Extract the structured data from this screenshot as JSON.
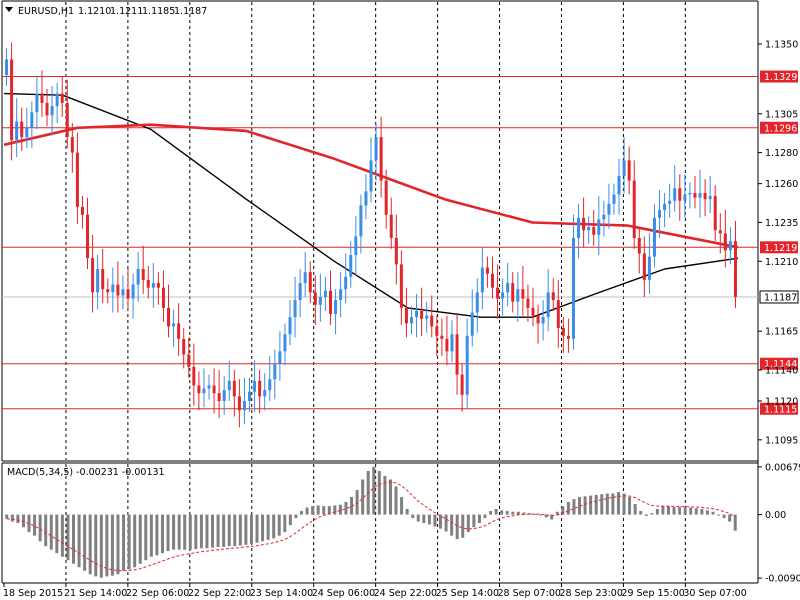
{
  "chart_data": [
    {
      "type": "candlestick",
      "title": "EURUSD,H1",
      "ohlc_readout": {
        "open": "1.1210",
        "high": "1.1211",
        "low": "1.1185",
        "close": "1.1187"
      },
      "current_price_label": "1.1187",
      "y_tick_labels": [
        "1.1350",
        "1.1305",
        "1.1280",
        "1.1260",
        "1.1235",
        "1.1210",
        "1.1165",
        "1.1140",
        "1.1120",
        "1.1095"
      ],
      "ylim": [
        1.1082,
        1.1377
      ],
      "x_tick_labels": [
        "18 Sep 2015",
        "21 Sep 14:00",
        "22 Sep 06:00",
        "22 Sep 22:00",
        "23 Sep 14:00",
        "24 Sep 06:00",
        "24 Sep 22:00",
        "25 Sep 14:00",
        "28 Sep 07:00",
        "28 Sep 23:00",
        "29 Sep 15:00",
        "30 Sep 07:00"
      ],
      "grid": "vertical dashed",
      "horizontal_levels": [
        {
          "label": "1.1329",
          "value": 1.1329
        },
        {
          "label": "1.1296",
          "value": 1.1296
        },
        {
          "label": "1.1219",
          "value": 1.1219
        },
        {
          "label": "1.1144",
          "value": 1.1144
        },
        {
          "label": "1.1115",
          "value": 1.1115
        }
      ],
      "candle_colors": {
        "up": "#3a8ee6",
        "down": "#e0262a"
      },
      "closes": [
        1.134,
        1.1288,
        1.13,
        1.129,
        1.1296,
        1.1306,
        1.1318,
        1.1312,
        1.1304,
        1.131,
        1.1318,
        1.1312,
        1.129,
        1.128,
        1.1245,
        1.124,
        1.1212,
        1.119,
        1.1205,
        1.1192,
        1.119,
        1.1195,
        1.1188,
        1.1192,
        1.1186,
        1.1195,
        1.1205,
        1.1198,
        1.1193,
        1.1196,
        1.1193,
        1.118,
        1.1168,
        1.117,
        1.116,
        1.115,
        1.1142,
        1.113,
        1.1125,
        1.1128,
        1.113,
        1.1125,
        1.112,
        1.1127,
        1.1133,
        1.1123,
        1.1114,
        1.112,
        1.1126,
        1.1133,
        1.1123,
        1.1127,
        1.1134,
        1.1144,
        1.1152,
        1.1163,
        1.1174,
        1.1185,
        1.1196,
        1.1203,
        1.119,
        1.1182,
        1.1187,
        1.1191,
        1.1176,
        1.1185,
        1.1192,
        1.12,
        1.1214,
        1.1226,
        1.1246,
        1.1255,
        1.1275,
        1.129,
        1.1262,
        1.124,
        1.1225,
        1.1208,
        1.118,
        1.117,
        1.1174,
        1.1178,
        1.1173,
        1.1175,
        1.1168,
        1.1162,
        1.116,
        1.1152,
        1.1163,
        1.1137,
        1.1124,
        1.1162,
        1.1177,
        1.119,
        1.1206,
        1.1202,
        1.1193,
        1.1186,
        1.119,
        1.1196,
        1.1184,
        1.1192,
        1.1186,
        1.118,
        1.1175,
        1.117,
        1.1174,
        1.119,
        1.1185,
        1.1167,
        1.1162,
        1.116,
        1.1225,
        1.1238,
        1.123,
        1.1232,
        1.1227,
        1.1237,
        1.124,
        1.1247,
        1.1253,
        1.1265,
        1.1275,
        1.1262,
        1.1225,
        1.1215,
        1.1198,
        1.1213,
        1.1238,
        1.1243,
        1.1247,
        1.1249,
        1.1257,
        1.1249,
        1.1253,
        1.1254,
        1.1251,
        1.1254,
        1.125,
        1.1252,
        1.123,
        1.1228,
        1.1217,
        1.1223,
        1.1187
      ],
      "ema_red_label": "moving average (red)",
      "ma_red": [
        {
          "t": 0,
          "v": 1.1285
        },
        {
          "t": 0.1,
          "v": 1.1296
        },
        {
          "t": 0.2,
          "v": 1.1298
        },
        {
          "t": 0.33,
          "v": 1.1294
        },
        {
          "t": 0.45,
          "v": 1.1276
        },
        {
          "t": 0.6,
          "v": 1.125
        },
        {
          "t": 0.72,
          "v": 1.1235
        },
        {
          "t": 0.85,
          "v": 1.1233
        },
        {
          "t": 1,
          "v": 1.1219
        }
      ],
      "ma_black": [
        {
          "t": 0,
          "v": 1.1318
        },
        {
          "t": 0.08,
          "v": 1.1317
        },
        {
          "t": 0.2,
          "v": 1.1295
        },
        {
          "t": 0.33,
          "v": 1.125
        },
        {
          "t": 0.45,
          "v": 1.121
        },
        {
          "t": 0.55,
          "v": 1.118
        },
        {
          "t": 0.65,
          "v": 1.1174
        },
        {
          "t": 0.72,
          "v": 1.1174
        },
        {
          "t": 0.8,
          "v": 1.1188
        },
        {
          "t": 0.9,
          "v": 1.1205
        },
        {
          "t": 1,
          "v": 1.1212
        }
      ]
    },
    {
      "type": "bar",
      "title": "MACD(5,34,5) -0.00231 -0.00131",
      "y_tick_labels": [
        "0.00679",
        "0.00",
        "-0.00904"
      ],
      "ylim": [
        -0.0096,
        0.0072
      ],
      "histogram_color": "#808080",
      "signal_color": "#e0262a",
      "values": [
        -0.0006,
        -0.001,
        -0.0012,
        -0.0018,
        -0.0025,
        -0.003,
        -0.0038,
        -0.0045,
        -0.005,
        -0.0055,
        -0.006,
        -0.0065,
        -0.007,
        -0.0075,
        -0.008,
        -0.0085,
        -0.0088,
        -0.009,
        -0.0088,
        -0.0087,
        -0.0085,
        -0.008,
        -0.0078,
        -0.0075,
        -0.007,
        -0.0065,
        -0.006,
        -0.0058,
        -0.0055,
        -0.0052,
        -0.005,
        -0.005,
        -0.005,
        -0.005,
        -0.0049,
        -0.0048,
        -0.0048,
        -0.0047,
        -0.0046,
        -0.0046,
        -0.0045,
        -0.0045,
        -0.0044,
        -0.0043,
        -0.0042,
        -0.004,
        -0.0038,
        -0.0036,
        -0.0034,
        -0.003,
        -0.0025,
        -0.0015,
        -0.0005,
        0.0005,
        0.001,
        0.0012,
        0.0013,
        0.0012,
        0.0012,
        0.0013,
        0.0014,
        0.0018,
        0.0025,
        0.0035,
        0.005,
        0.0062,
        0.0068,
        0.0062,
        0.0055,
        0.005,
        0.004,
        0.0025,
        0.0008,
        -0.0005,
        -0.001,
        -0.0012,
        -0.0014,
        -0.0017,
        -0.002,
        -0.0024,
        -0.003,
        -0.0035,
        -0.0033,
        -0.0025,
        -0.0018,
        -0.0012,
        -0.0005,
        0.0005,
        0.0008,
        0.0006,
        0.0005,
        0.0004,
        0.0004,
        0.0003,
        0.0002,
        0.0001,
        0.0,
        -0.0004,
        -0.0007,
        0.0004,
        0.0012,
        0.0018,
        0.0022,
        0.0025,
        0.0026,
        0.0027,
        0.0028,
        0.0029,
        0.003,
        0.003,
        0.0032,
        0.003,
        0.0025,
        0.0015,
        0.0005,
        -0.0002,
        0.0002,
        0.0008,
        0.0012,
        0.0012,
        0.0011,
        0.0011,
        0.001,
        0.001,
        0.0009,
        0.0008,
        0.0006,
        0.0004,
        0.0,
        -0.0005,
        -0.001,
        -0.0023
      ]
    }
  ]
}
